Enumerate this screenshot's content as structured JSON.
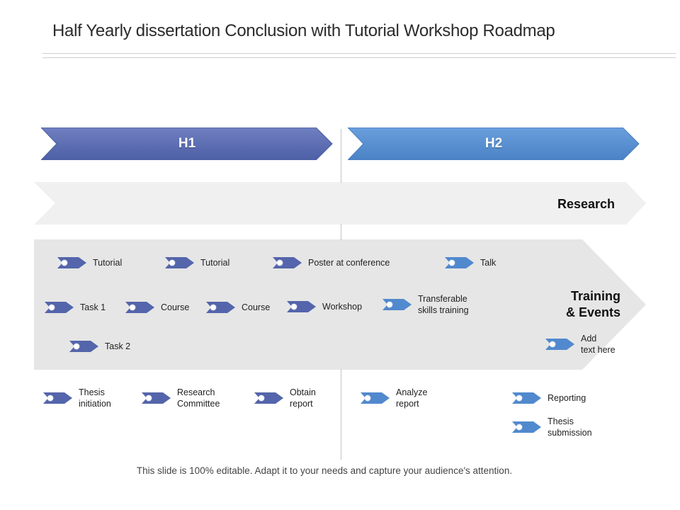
{
  "title": "Half Yearly dissertation Conclusion with Tutorial Workshop Roadmap",
  "footer": "This slide is 100% editable. Adapt it to your needs and capture your audience's attention.",
  "colors": {
    "h1": "#5567ad",
    "h2": "#4f88cc",
    "research_band": "#f0f0f0",
    "training_band": "#e5e5e5",
    "arrow_dark": "#5465ab",
    "arrow_light": "#5189ce"
  },
  "phases": [
    {
      "label": "H1"
    },
    {
      "label": "H2"
    }
  ],
  "bands": {
    "research": "Research",
    "training_line1": "Training",
    "training_line2": "& Events"
  },
  "items": [
    {
      "lines": [
        "Tutorial"
      ],
      "color": "dark"
    },
    {
      "lines": [
        "Tutorial"
      ],
      "color": "dark"
    },
    {
      "lines": [
        "Poster at conference"
      ],
      "color": "dark"
    },
    {
      "lines": [
        "Talk"
      ],
      "color": "light"
    },
    {
      "lines": [
        "Task 1"
      ],
      "color": "dark"
    },
    {
      "lines": [
        "Course"
      ],
      "color": "dark"
    },
    {
      "lines": [
        "Course"
      ],
      "color": "dark"
    },
    {
      "lines": [
        "Workshop"
      ],
      "color": "dark"
    },
    {
      "lines": [
        "Transferable",
        "skills training"
      ],
      "color": "light"
    },
    {
      "lines": [
        "Task 2"
      ],
      "color": "dark"
    },
    {
      "lines": [
        "Add",
        "text here"
      ],
      "color": "light"
    },
    {
      "lines": [
        "Thesis",
        "initiation"
      ],
      "color": "dark"
    },
    {
      "lines": [
        "Research",
        "Committee"
      ],
      "color": "dark"
    },
    {
      "lines": [
        "Obtain",
        "report"
      ],
      "color": "dark"
    },
    {
      "lines": [
        "Analyze",
        "report"
      ],
      "color": "light"
    },
    {
      "lines": [
        "Reporting"
      ],
      "color": "light"
    },
    {
      "lines": [
        "Thesis",
        "submission"
      ],
      "color": "light"
    }
  ]
}
